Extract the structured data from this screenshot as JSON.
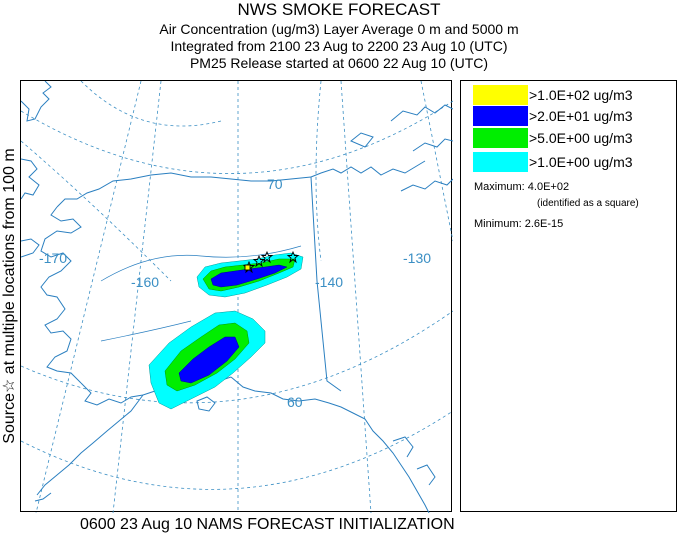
{
  "title": "NWS SMOKE FORECAST",
  "subtitle_lines": [
    "Air Concentration (ug/m3) Layer Average    0 m and  5000 m",
    "Integrated from 2100 23 Aug to 2200 23 Aug 10 (UTC)",
    "PM25 Release started at 0600 22 Aug 10 (UTC)"
  ],
  "side_label": "Source☆ at multiple locations   from   100 m",
  "footer": "0600 23 Aug 10 NAMS FORECAST INITIALIZATION",
  "legend": [
    {
      "label": ">1.0E+02 ug/m3",
      "color": "#ffff00"
    },
    {
      "label": ">2.0E+01 ug/m3",
      "color": "#0000ff"
    },
    {
      "label": ">5.0E+00 ug/m3",
      "color": "#00ee00"
    },
    {
      "label": ">1.0E+00 ug/m3",
      "color": "#00ffff"
    }
  ],
  "stats": {
    "maximum_label": "Maximum:",
    "maximum_value": "4.0E+02",
    "maximum_note": "(identified as a square)",
    "minimum_label": "Minimum:",
    "minimum_value": "2.6E-15"
  },
  "map": {
    "longitude_labels": [
      "-170",
      "-160",
      "-140",
      "-130"
    ],
    "latitude_labels": [
      "70",
      "60"
    ],
    "graticule_color": "#3b8fc4",
    "coast_color": "#2a7fc0"
  }
}
